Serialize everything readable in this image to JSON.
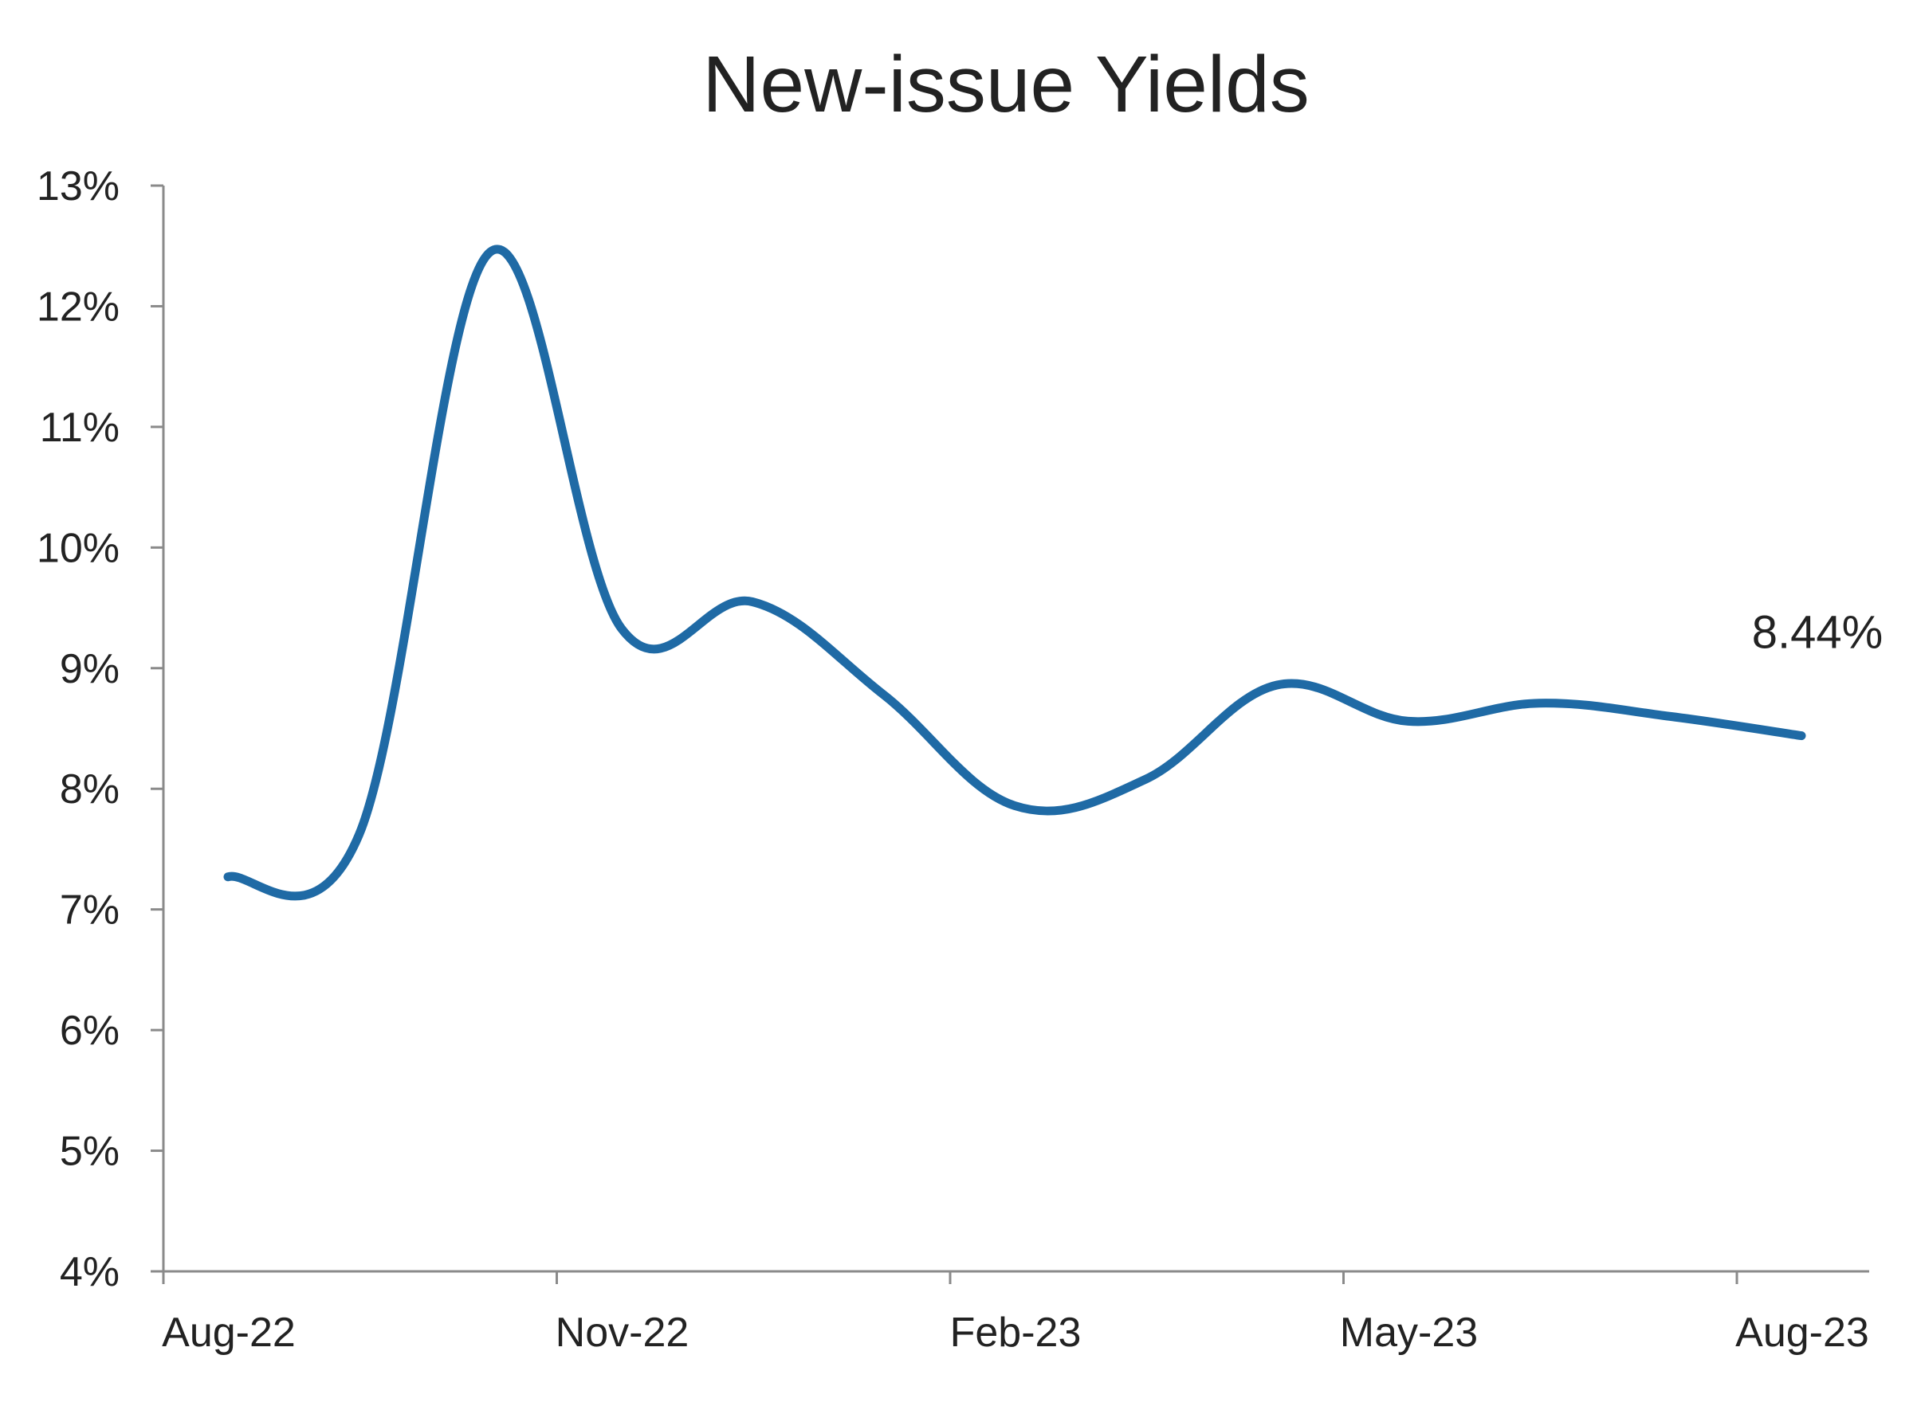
{
  "chart_data": {
    "type": "line",
    "title": "New-issue Yields",
    "xlabel": "",
    "ylabel": "",
    "x_ticks": [
      "Aug-22",
      "Nov-22",
      "Feb-23",
      "May-23",
      "Aug-23"
    ],
    "y_ticks": [
      "4%",
      "5%",
      "6%",
      "7%",
      "8%",
      "9%",
      "10%",
      "11%",
      "12%",
      "13%"
    ],
    "ylim": [
      4,
      13
    ],
    "grid": false,
    "legend": "none",
    "series": [
      {
        "color": "#1f6aa5",
        "points": [
          {
            "x": "Aug-22",
            "y": 7.27
          },
          {
            "x": "Sep-22",
            "y": 7.62
          },
          {
            "x": "Oct-22",
            "y": 12.45
          },
          {
            "x": "Nov-22",
            "y": 9.33
          },
          {
            "x": "Dec-22",
            "y": 9.55
          },
          {
            "x": "Jan-23",
            "y": 8.78
          },
          {
            "x": "Feb-23",
            "y": 7.86
          },
          {
            "x": "Mar-23",
            "y": 8.08
          },
          {
            "x": "Apr-23",
            "y": 8.86
          },
          {
            "x": "May-23",
            "y": 8.56
          },
          {
            "x": "Jun-23",
            "y": 8.71
          },
          {
            "x": "Jul-23",
            "y": 8.6
          },
          {
            "x": "Aug-23",
            "y": 8.44
          }
        ]
      }
    ],
    "end_label": "8.44%"
  }
}
